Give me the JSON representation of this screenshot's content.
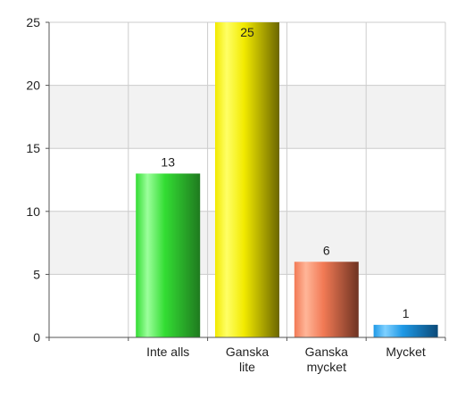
{
  "chart_data": {
    "type": "bar",
    "title": "",
    "xlabel": "",
    "ylabel": "",
    "categories": [
      {
        "lines": [
          "Inte alls"
        ]
      },
      {
        "lines": [
          "Ganska",
          "lite"
        ]
      },
      {
        "lines": [
          "Ganska",
          "mycket"
        ]
      },
      {
        "lines": [
          "Mycket"
        ]
      }
    ],
    "values": [
      13,
      25,
      6,
      1
    ],
    "value_labels": [
      "13",
      "25",
      "6",
      "1"
    ],
    "ylim": [
      0,
      25
    ],
    "yticks": [
      0,
      5,
      10,
      15,
      20,
      25
    ],
    "ytick_labels": [
      "0",
      "5",
      "10",
      "15",
      "20",
      "25"
    ],
    "grid": true,
    "alternating_bands": true,
    "legend": "none",
    "bar_colors": [
      {
        "light": "#9cff9c",
        "mid": "#33dd33",
        "dark": "#1f7a1f"
      },
      {
        "light": "#ffff66",
        "mid": "#f2ea00",
        "dark": "#6b6600"
      },
      {
        "light": "#ffb598",
        "mid": "#f27a55",
        "dark": "#6e3322"
      },
      {
        "light": "#7fd0ff",
        "mid": "#1f99e6",
        "dark": "#0b4a78"
      }
    ],
    "band_color": "#f2f2f2",
    "grid_color": "#cccccc",
    "axis_color": "#555555"
  }
}
